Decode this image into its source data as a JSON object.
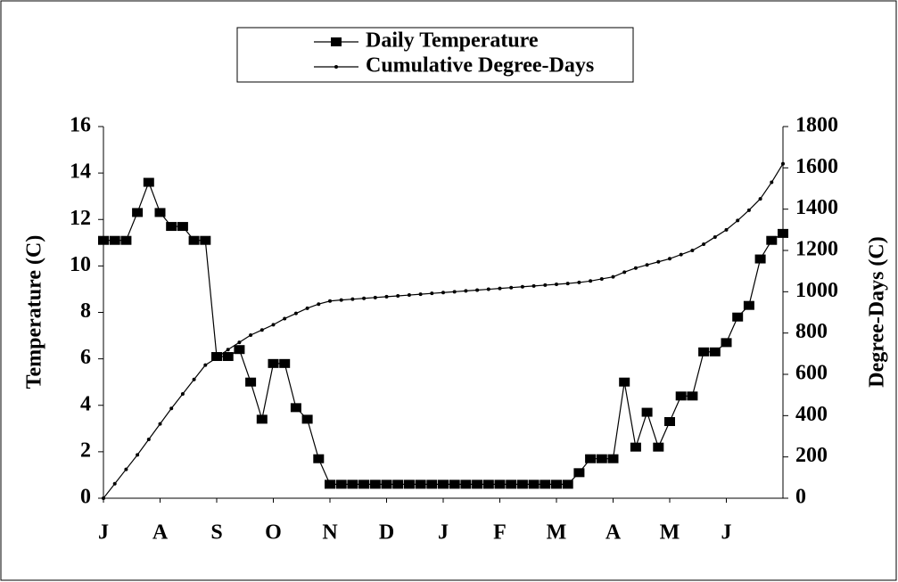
{
  "chart_data": {
    "type": "line",
    "ylabel": "Temperature (C)",
    "y2label": "Degree-Days (C)",
    "xlim": [
      0,
      12
    ],
    "xticks": [
      {
        "value": 0,
        "label": "J"
      },
      {
        "value": 1,
        "label": "A"
      },
      {
        "value": 2,
        "label": "S"
      },
      {
        "value": 3,
        "label": "O"
      },
      {
        "value": 4,
        "label": "N"
      },
      {
        "value": 5,
        "label": "D"
      },
      {
        "value": 6,
        "label": "J"
      },
      {
        "value": 7,
        "label": "F"
      },
      {
        "value": 8,
        "label": "M"
      },
      {
        "value": 9,
        "label": "A"
      },
      {
        "value": 10,
        "label": "M"
      },
      {
        "value": 11,
        "label": "J"
      }
    ],
    "ylim": [
      0,
      16
    ],
    "yticks": [
      0,
      2,
      4,
      6,
      8,
      10,
      12,
      14,
      16
    ],
    "y2lim": [
      0,
      1800
    ],
    "y2ticks": [
      0,
      200,
      400,
      600,
      800,
      1000,
      1200,
      1400,
      1600,
      1800
    ],
    "x": [
      0,
      0.2,
      0.4,
      0.6,
      0.8,
      1.0,
      1.2,
      1.4,
      1.6,
      1.8,
      2.0,
      2.2,
      2.4,
      2.6,
      2.8,
      3.0,
      3.2,
      3.4,
      3.6,
      3.8,
      4.0,
      4.2,
      4.4,
      4.6,
      4.8,
      5.0,
      5.2,
      5.4,
      5.6,
      5.8,
      6.0,
      6.2,
      6.4,
      6.6,
      6.8,
      7.0,
      7.2,
      7.4,
      7.6,
      7.8,
      8.0,
      8.2,
      8.4,
      8.6,
      8.8,
      9.0,
      9.2,
      9.4,
      9.6,
      9.8,
      10.0,
      10.2,
      10.4,
      10.6,
      10.8,
      11.0,
      11.2,
      11.4,
      11.6,
      11.8,
      12.0
    ],
    "legend": "top",
    "series": [
      {
        "name": "Daily Temperature",
        "color": "#000000",
        "marker": "square",
        "values": [
          11.1,
          11.1,
          11.1,
          12.3,
          13.6,
          12.3,
          11.7,
          11.7,
          11.1,
          11.1,
          6.1,
          6.1,
          6.4,
          5.0,
          3.4,
          5.8,
          5.8,
          3.9,
          3.4,
          1.7,
          0.6,
          0.6,
          0.6,
          0.6,
          0.6,
          0.6,
          0.6,
          0.6,
          0.6,
          0.6,
          0.6,
          0.6,
          0.6,
          0.6,
          0.6,
          0.6,
          0.6,
          0.6,
          0.6,
          0.6,
          0.6,
          0.6,
          1.1,
          1.7,
          1.7,
          1.7,
          5.0,
          2.2,
          3.7,
          2.2,
          3.3,
          4.4,
          4.4,
          6.3,
          6.3,
          6.7,
          7.8,
          8.3,
          10.3,
          11.1,
          11.4
        ]
      },
      {
        "name": "Cumulative Degree-Days",
        "color": "#000000",
        "marker": "dot",
        "axis": "y2",
        "values": [
          0,
          70,
          140,
          210,
          285,
          360,
          435,
          505,
          575,
          645,
          680,
          720,
          755,
          790,
          815,
          840,
          870,
          895,
          920,
          940,
          955,
          960,
          964,
          968,
          972,
          976,
          980,
          984,
          988,
          992,
          996,
          1000,
          1004,
          1008,
          1012,
          1016,
          1020,
          1024,
          1028,
          1032,
          1036,
          1040,
          1045,
          1052,
          1062,
          1072,
          1095,
          1115,
          1130,
          1145,
          1160,
          1180,
          1200,
          1230,
          1265,
          1300,
          1345,
          1395,
          1450,
          1530,
          1620
        ]
      }
    ]
  }
}
